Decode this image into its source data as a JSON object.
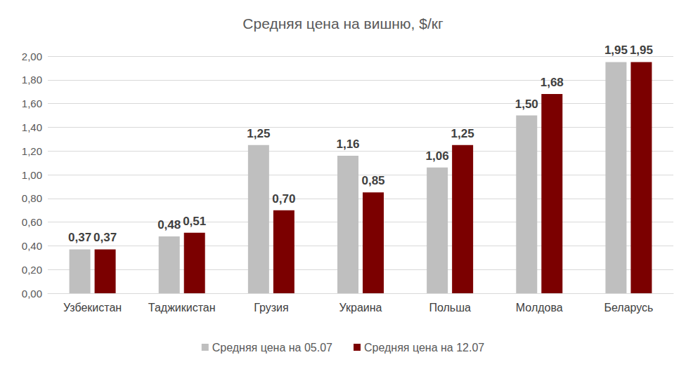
{
  "chart_data": {
    "type": "bar",
    "title": "Средняя цена на вишню, $/кг",
    "categories": [
      "Узбекистан",
      "Таджикистан",
      "Грузия",
      "Украина",
      "Польша",
      "Молдова",
      "Беларусь"
    ],
    "series": [
      {
        "name": "Средняя цена на 05.07",
        "color": "#bfbfbf",
        "values": [
          0.37,
          0.48,
          1.25,
          1.16,
          1.06,
          1.5,
          1.95
        ],
        "value_labels": [
          "0,37",
          "0,48",
          "1,25",
          "1,16",
          "1,06",
          "1,50",
          "1,95"
        ]
      },
      {
        "name": "Средняя цена на 12.07",
        "color": "#7b0000",
        "values": [
          0.37,
          0.51,
          0.7,
          0.85,
          1.25,
          1.68,
          1.95
        ],
        "value_labels": [
          "0,37",
          "0,51",
          "0,70",
          "0,85",
          "1,25",
          "1,68",
          "1,95"
        ]
      }
    ],
    "ylim": [
      0,
      2
    ],
    "yticks": [
      {
        "value": 0,
        "label": "0,00"
      },
      {
        "value": 0.2,
        "label": "0,20"
      },
      {
        "value": 0.4,
        "label": "0,40"
      },
      {
        "value": 0.6,
        "label": "0,60"
      },
      {
        "value": 0.8,
        "label": "0,80"
      },
      {
        "value": 1,
        "label": "1,00"
      },
      {
        "value": 1.2,
        "label": "1,20"
      },
      {
        "value": 1.4,
        "label": "1,40"
      },
      {
        "value": 1.6,
        "label": "1,60"
      },
      {
        "value": 1.8,
        "label": "1,80"
      },
      {
        "value": 2,
        "label": "2,00"
      }
    ],
    "grid": true,
    "legend": "bottom",
    "data_labels": true
  }
}
